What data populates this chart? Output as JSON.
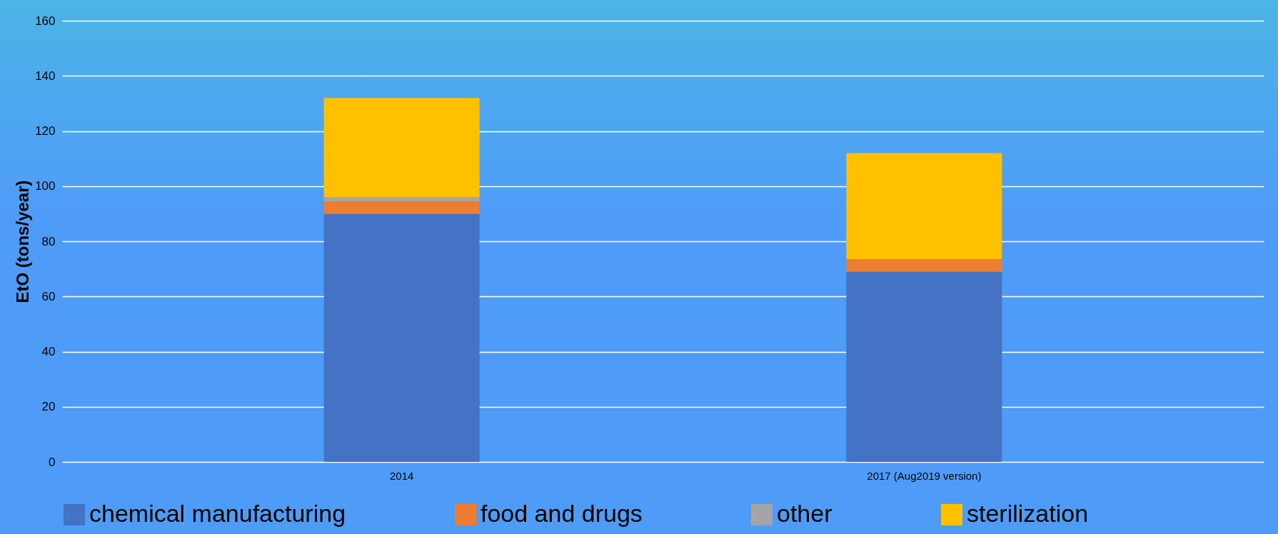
{
  "chart_data": {
    "type": "bar",
    "ylabel": "EtO (tons/year)",
    "categories": [
      "2014",
      "2017 (Aug2019 version)"
    ],
    "stacked": true,
    "series": [
      {
        "name": "chemical manufacturing",
        "color": "#4472c4",
        "values": [
          90,
          69
        ]
      },
      {
        "name": "food and drugs",
        "color": "#ed7d31",
        "values": [
          4.5,
          4.5
        ]
      },
      {
        "name": "other",
        "color": "#a5a5a5",
        "values": [
          1.5,
          null
        ]
      },
      {
        "name": "sterilization",
        "color": "#ffc000",
        "values": [
          36,
          38.5
        ]
      }
    ],
    "ylim": [
      0,
      160
    ],
    "yticks": [
      0,
      20,
      40,
      60,
      80,
      100,
      120,
      140,
      160
    ],
    "grid": "y",
    "legend": "bottom"
  }
}
